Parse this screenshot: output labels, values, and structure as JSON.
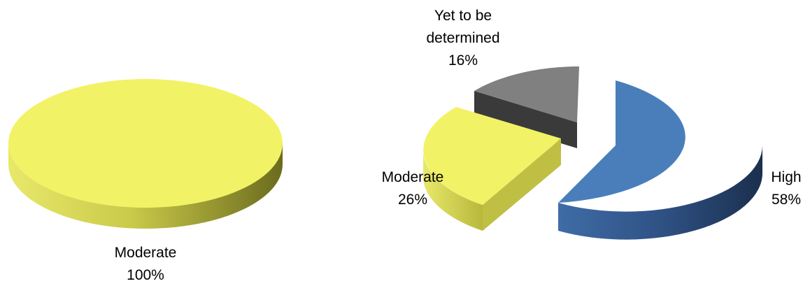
{
  "chart_data": [
    {
      "type": "pie",
      "title": "",
      "slices": [
        {
          "label": "Moderate",
          "value": 100,
          "value_label": "100%",
          "color": "#F2F266"
        }
      ]
    },
    {
      "type": "pie",
      "title": "",
      "exploded": true,
      "slices": [
        {
          "label": "High",
          "value": 58,
          "value_label": "58%",
          "color": "#4A7EBB"
        },
        {
          "label": "Moderate",
          "value": 26,
          "value_label": "26%",
          "color": "#F2F266"
        },
        {
          "label": "Yet to be determined",
          "label_lines": [
            "Yet to be",
            "determined"
          ],
          "value": 16,
          "value_label": "16%",
          "color": "#808080"
        }
      ]
    }
  ]
}
